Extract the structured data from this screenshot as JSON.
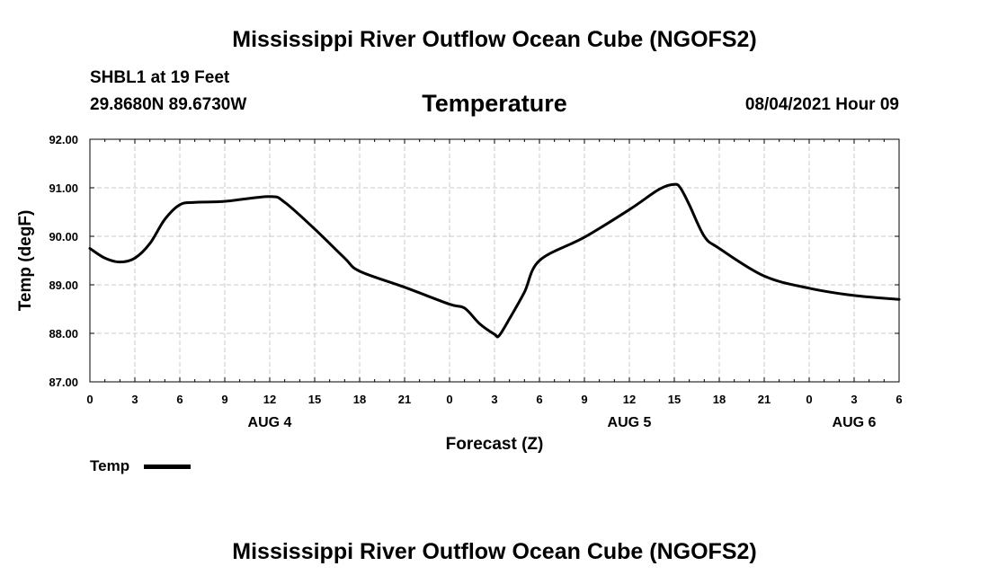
{
  "header": {
    "title": "Mississippi River Outflow Ocean Cube (NGOFS2)",
    "station": "SHBL1 at 19 Feet",
    "coords": "29.8680N  89.6730W",
    "variable": "Temperature",
    "datetime": "08/04/2021 Hour 09"
  },
  "footer": {
    "title": "Mississippi River Outflow Ocean Cube (NGOFS2)"
  },
  "legend": {
    "label": "Temp",
    "color": "#000000"
  },
  "chart_data": {
    "type": "line",
    "title": "Temperature",
    "xlabel": "Forecast (Z)",
    "ylabel": "Temp (degF)",
    "xlim": [
      0,
      54
    ],
    "ylim": [
      87.0,
      92.0
    ],
    "grid": true,
    "x_ticks": [
      0,
      3,
      6,
      9,
      12,
      15,
      18,
      21,
      24,
      27,
      30,
      33,
      36,
      39,
      42,
      45,
      48,
      51,
      54
    ],
    "x_tick_labels": [
      "0",
      "3",
      "6",
      "9",
      "12",
      "15",
      "18",
      "21",
      "0",
      "3",
      "6",
      "9",
      "12",
      "15",
      "18",
      "21",
      "0",
      "3",
      "6"
    ],
    "y_ticks": [
      87.0,
      88.0,
      89.0,
      90.0,
      91.0,
      92.0
    ],
    "y_tick_labels": [
      "87.00",
      "88.00",
      "89.00",
      "90.00",
      "91.00",
      "92.00"
    ],
    "day_labels": [
      {
        "x": 12,
        "label": "AUG 4"
      },
      {
        "x": 36,
        "label": "AUG 5"
      },
      {
        "x": 51,
        "label": "AUG 6"
      }
    ],
    "series": [
      {
        "name": "Temp",
        "color": "#000000",
        "x": [
          0,
          1,
          2,
          3,
          4,
          5,
          6,
          7,
          9,
          12,
          13,
          15,
          17,
          18,
          21,
          24,
          25,
          26,
          27,
          27.3,
          28,
          29,
          30,
          33,
          36,
          38,
          39,
          39.4,
          40,
          41,
          42,
          45,
          48,
          51,
          54
        ],
        "values": [
          89.75,
          89.55,
          89.47,
          89.55,
          89.85,
          90.35,
          90.65,
          90.7,
          90.72,
          90.82,
          90.7,
          90.15,
          89.55,
          89.28,
          88.95,
          88.6,
          88.52,
          88.2,
          87.98,
          87.95,
          88.3,
          88.85,
          89.5,
          89.98,
          90.55,
          90.97,
          91.07,
          91.0,
          90.65,
          90.0,
          89.75,
          89.18,
          88.93,
          88.78,
          88.7
        ]
      }
    ]
  }
}
